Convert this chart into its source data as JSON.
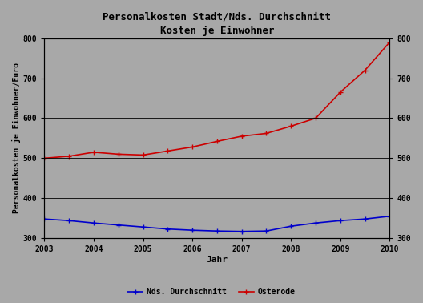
{
  "title": "Personalkosten Stadt/Nds. Durchschnitt",
  "subtitle": "Kosten je Einwohner",
  "xlabel": "Jahr",
  "ylabel_left": "Personalkosten je Einwohner/Euro",
  "years": [
    2003,
    2003.5,
    2004,
    2004.5,
    2005,
    2005.5,
    2006,
    2006.5,
    2007,
    2007.5,
    2008,
    2008.5,
    2009,
    2009.5,
    2010
  ],
  "nds_values": [
    348,
    344,
    338,
    333,
    328,
    323,
    320,
    318,
    317,
    318,
    330,
    338,
    344,
    348,
    355
  ],
  "osterode_values": [
    500,
    505,
    515,
    510,
    508,
    518,
    528,
    542,
    555,
    562,
    580,
    600,
    665,
    720,
    790
  ],
  "nds_color": "#0000cc",
  "osterode_color": "#cc0000",
  "bg_color": "#a8a8a8",
  "ylim": [
    300,
    800
  ],
  "yticks": [
    300,
    400,
    500,
    600,
    700,
    800
  ],
  "xlim": [
    2003,
    2010
  ],
  "xticks": [
    2003,
    2004,
    2005,
    2006,
    2007,
    2008,
    2009,
    2010
  ],
  "legend_nds": "Nds. Durchschnitt",
  "legend_osterode": "Osterode",
  "title_fontsize": 9,
  "subtitle_fontsize": 8,
  "axis_label_fontsize": 7,
  "tick_fontsize": 7
}
